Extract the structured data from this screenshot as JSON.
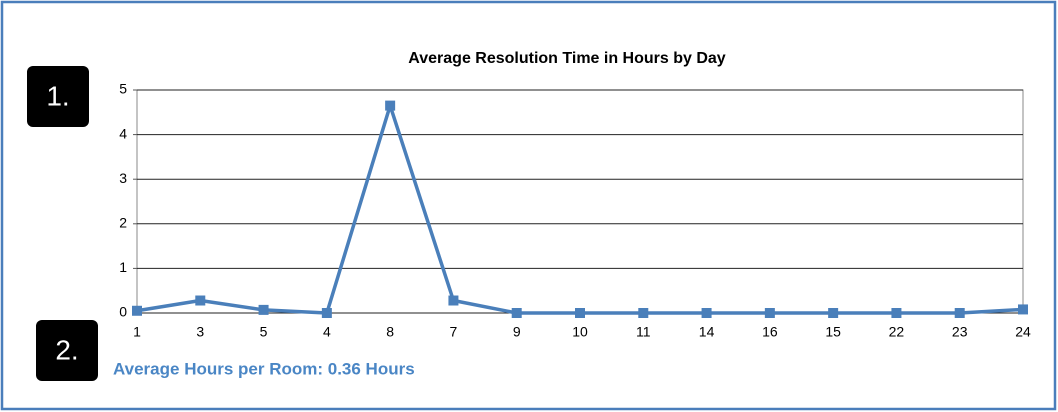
{
  "chart_data": {
    "type": "line",
    "title": "Average Resolution Time in Hours by Day",
    "categories": [
      "1",
      "3",
      "5",
      "4",
      "8",
      "7",
      "9",
      "10",
      "11",
      "14",
      "16",
      "15",
      "22",
      "23",
      "24"
    ],
    "series": [
      {
        "color": "#4a7fba",
        "values": [
          0.05,
          0.28,
          0.07,
          0.0,
          4.65,
          0.28,
          0.0,
          0.0,
          0.0,
          0.0,
          0.0,
          0.0,
          0.0,
          0.0,
          0.08
        ]
      }
    ],
    "ylim": [
      0,
      5
    ],
    "yticks": [
      0,
      1,
      2,
      3,
      4,
      5
    ],
    "grid": true
  },
  "badges": [
    "1.",
    "2."
  ],
  "summary": "Average Hours per Room: 0.36 Hours"
}
